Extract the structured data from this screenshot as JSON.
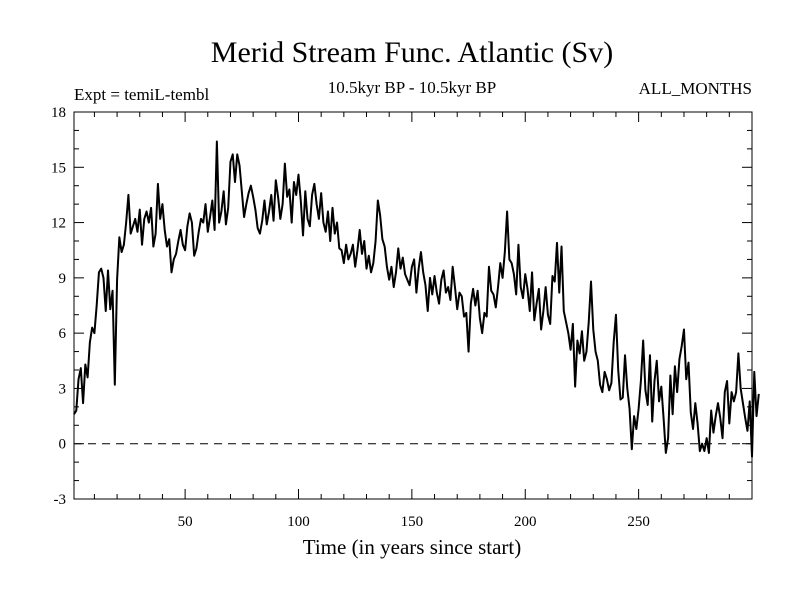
{
  "chart_data": {
    "type": "line",
    "title": "Merid Stream Func. Atlantic (Sv)",
    "subtitle": "10.5kyr BP - 10.5kyr BP",
    "left_label": "Expt = temiL-tembl",
    "right_label": "ALL_MONTHS",
    "xlabel": "Time (in years since start)",
    "ylabel": "",
    "xlim": [
      1,
      300
    ],
    "ylim": [
      -3,
      18
    ],
    "x_ticks": [
      50,
      100,
      150,
      200,
      250
    ],
    "y_ticks": [
      -3,
      0,
      3,
      6,
      9,
      12,
      15,
      18
    ],
    "reference_line": {
      "y": 0,
      "style": "dashed"
    },
    "series": [
      {
        "name": "Merid Stream Func. Atlantic",
        "x_start": 1,
        "x_step": 1,
        "values": [
          1.6,
          1.8,
          3.5,
          4.1,
          2.2,
          4.3,
          3.6,
          5.5,
          6.3,
          6.0,
          7.5,
          9.3,
          9.5,
          9.0,
          7.2,
          9.4,
          7.3,
          8.3,
          3.2,
          8.9,
          11.2,
          10.4,
          10.8,
          12.0,
          13.5,
          11.4,
          11.8,
          12.2,
          11.5,
          12.7,
          10.8,
          12.2,
          12.6,
          12.0,
          12.8,
          10.7,
          11.4,
          14.1,
          12.2,
          13.0,
          11.6,
          10.7,
          11.1,
          9.3,
          10.0,
          10.3,
          11.0,
          11.6,
          10.8,
          10.5,
          11.8,
          12.5,
          12.0,
          10.2,
          10.6,
          11.5,
          12.2,
          12.0,
          13.0,
          11.5,
          12.3,
          13.2,
          11.6,
          16.4,
          12.0,
          12.6,
          13.7,
          11.9,
          12.8,
          15.3,
          15.7,
          14.2,
          15.7,
          15.1,
          13.7,
          12.3,
          13.0,
          13.6,
          14.0,
          13.4,
          12.7,
          11.7,
          11.4,
          12.1,
          13.2,
          11.9,
          12.6,
          13.5,
          12.1,
          14.3,
          13.4,
          12.2,
          13.0,
          15.2,
          13.4,
          13.8,
          12.0,
          14.2,
          13.5,
          14.6,
          13.2,
          11.3,
          13.7,
          12.2,
          11.8,
          13.5,
          14.1,
          13.0,
          12.2,
          13.6,
          12.0,
          11.5,
          12.6,
          11.0,
          12.8,
          11.4,
          12.0,
          10.6,
          10.5,
          9.8,
          10.8,
          10.0,
          10.3,
          10.8,
          9.6,
          10.5,
          11.6,
          10.3,
          11.0,
          9.5,
          10.2,
          9.3,
          9.8,
          11.0,
          13.2,
          12.4,
          11.1,
          10.7,
          9.6,
          8.9,
          9.6,
          8.5,
          9.3,
          10.6,
          9.5,
          10.1,
          9.2,
          8.9,
          8.6,
          9.6,
          10.0,
          8.2,
          9.5,
          10.4,
          9.3,
          8.6,
          7.2,
          9.0,
          8.1,
          9.1,
          8.2,
          7.6,
          8.9,
          9.4,
          8.2,
          8.5,
          7.8,
          9.6,
          8.5,
          7.3,
          8.2,
          8.0,
          6.9,
          7.1,
          5.0,
          7.6,
          8.4,
          7.5,
          8.3,
          6.8,
          6.0,
          7.1,
          6.9,
          9.6,
          8.3,
          8.1,
          7.4,
          8.5,
          9.8,
          9.0,
          10.4,
          12.6,
          10.0,
          9.8,
          9.2,
          8.1,
          10.8,
          8.5,
          7.9,
          9.2,
          8.4,
          7.2,
          9.3,
          6.7,
          7.6,
          8.4,
          6.2,
          7.2,
          8.5,
          7.0,
          6.5,
          9.1,
          8.8,
          10.9,
          8.2,
          10.7,
          7.2,
          6.6,
          6.0,
          5.1,
          6.5,
          3.1,
          5.6,
          4.9,
          6.1,
          4.5,
          5.0,
          6.6,
          8.8,
          6.2,
          5.0,
          4.5,
          3.2,
          2.8,
          3.9,
          3.5,
          2.9,
          3.3,
          5.5,
          7.0,
          4.0,
          2.4,
          2.5,
          4.8,
          3.0,
          1.9,
          -0.3,
          1.5,
          0.8,
          1.9,
          3.4,
          5.6,
          2.9,
          2.1,
          4.8,
          1.2,
          3.4,
          4.5,
          2.3,
          3.1,
          1.4,
          -0.5,
          0.3,
          3.7,
          1.6,
          4.2,
          2.8,
          4.6,
          5.3,
          6.2,
          3.5,
          4.4,
          1.7,
          0.8,
          2.2,
          1.1,
          -0.4,
          0.0,
          -0.4,
          0.3,
          -0.5,
          1.8,
          0.6,
          1.5,
          2.2,
          1.4,
          0.3,
          2.8,
          3.4,
          1.1,
          2.8,
          2.3,
          2.8,
          4.9,
          3.0,
          2.2,
          1.4,
          0.7,
          2.3,
          -0.7,
          3.9,
          1.5,
          2.7
        ]
      }
    ]
  }
}
